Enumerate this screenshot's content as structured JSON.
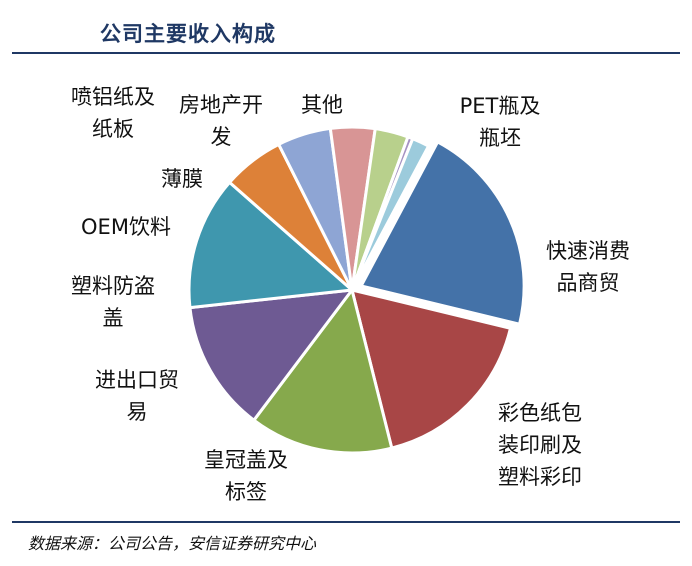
{
  "header": {
    "title": "公司主要收入构成"
  },
  "footer": {
    "source": "数据来源：公司公告，安信证券研究中心"
  },
  "chart_data": {
    "type": "pie",
    "title": "",
    "slices": [
      {
        "name": "PET瓶及瓶坯",
        "value": 21.0,
        "color": "#4472a8"
      },
      {
        "name": "快速消费品商贸",
        "value": 17.3,
        "color": "#a84646"
      },
      {
        "name": "彩色纸包装印刷及塑料彩印",
        "value": 14.2,
        "color": "#86a94c"
      },
      {
        "name": "皇冠盖及标签",
        "value": 13.0,
        "color": "#6e5a93"
      },
      {
        "name": "进出口贸易",
        "value": 13.2,
        "color": "#3f97ae"
      },
      {
        "name": "塑料防盗盖",
        "value": 6.1,
        "color": "#dd8138"
      },
      {
        "name": "OEM饮料",
        "value": 5.3,
        "color": "#8ea5d4"
      },
      {
        "name": "薄膜",
        "value": 4.4,
        "color": "#d89595"
      },
      {
        "name": "喷铝纸及纸板",
        "value": 3.3,
        "color": "#b8d08c"
      },
      {
        "name": "房地产开发",
        "value": 0.5,
        "color": "#a592c2"
      },
      {
        "name": "其他",
        "value": 1.7,
        "color": "#9ccbdc"
      }
    ],
    "legend": "none"
  }
}
